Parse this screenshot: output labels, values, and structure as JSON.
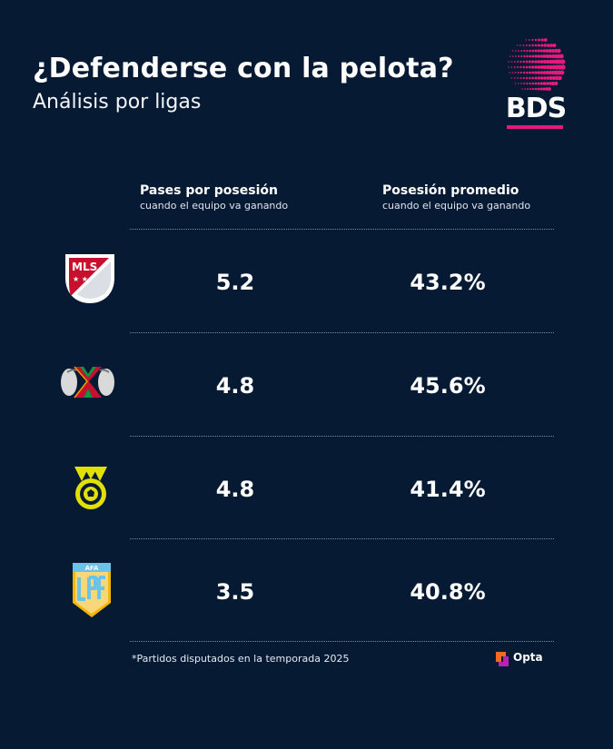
{
  "header": {
    "title": "¿Defenderse con la pelota?",
    "subtitle": "Análisis por ligas",
    "brand": "BDS",
    "brand_color": "#e6197f"
  },
  "columns": {
    "passes": {
      "title": "Pases por posesión",
      "subtitle": "cuando el equipo va ganando"
    },
    "possession": {
      "title": "Posesión promedio",
      "subtitle": "cuando el equipo va ganando"
    }
  },
  "chart_data": {
    "type": "table",
    "columns": [
      "Pases por posesión",
      "Posesión promedio"
    ],
    "rows": [
      {
        "league_icon": "mls-logo",
        "logo_text": "MLS",
        "passes": "5.2",
        "possession": "43.2%"
      },
      {
        "league_icon": "liga-mx-logo",
        "passes": "4.8",
        "possession": "45.6%"
      },
      {
        "league_icon": "brasileirao-logo",
        "passes": "4.8",
        "possession": "41.4%"
      },
      {
        "league_icon": "lpf-argentina-logo",
        "logo_text": "AFA",
        "passes": "3.5",
        "possession": "40.8%"
      }
    ]
  },
  "footer": {
    "note": "*Partidos disputados en la temporada 2025",
    "source": "Opta"
  }
}
